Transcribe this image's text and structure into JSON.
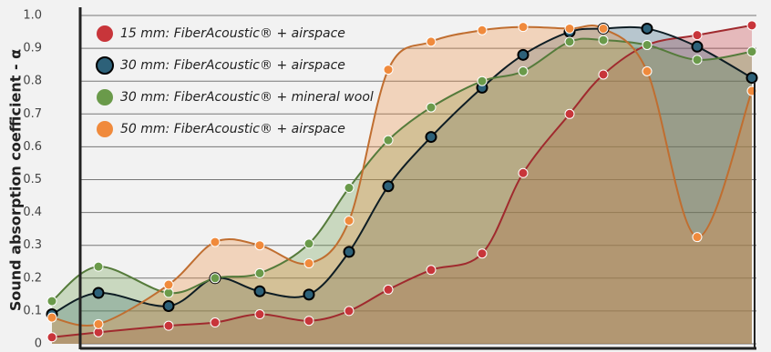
{
  "chart_data": {
    "type": "area-line",
    "y_label": "Sound absorption coefficient - α",
    "categories": [
      null,
      null,
      null,
      null,
      null,
      null,
      null,
      null,
      null,
      null,
      null,
      null,
      null,
      null,
      null,
      null
    ],
    "ylim": [
      0,
      1
    ],
    "yticks": [
      0,
      0.1,
      0.2,
      0.3,
      0.4,
      0.5,
      0.6,
      0.7,
      0.8,
      0.9,
      {
        "value": 1,
        "label": "1.0"
      }
    ],
    "grid": true,
    "series": [
      {
        "name": "15 mm: FiberAcoustic® + airspace",
        "color": "#c8353a",
        "values": [
          0.02,
          0.035,
          0.055,
          0.065,
          0.09,
          0.07,
          0.1,
          0.165,
          0.225,
          0.275,
          0.52,
          0.7,
          0.82,
          0.91,
          0.94,
          0.97
        ]
      },
      {
        "name": "30 mm: FiberAcoustic® + airspace",
        "color": "#2d6179",
        "values": [
          0.09,
          0.155,
          0.115,
          0.2,
          0.16,
          0.15,
          0.28,
          0.48,
          0.63,
          0.78,
          0.88,
          0.95,
          0.96,
          0.96,
          0.905,
          0.81
        ]
      },
      {
        "name": "30 mm: FiberAcoustic® + mineral wool",
        "color": "#6a9a4a",
        "values": [
          0.13,
          0.235,
          0.155,
          0.2,
          0.215,
          0.305,
          0.475,
          0.62,
          0.72,
          0.8,
          0.83,
          0.92,
          0.925,
          0.91,
          0.865,
          0.89
        ]
      },
      {
        "name": "50 mm: FiberAcoustic® + airspace",
        "color": "#f08a3c",
        "values": [
          0.08,
          0.06,
          0.18,
          0.31,
          0.3,
          0.245,
          0.375,
          0.835,
          0.92,
          0.955,
          0.965,
          0.96,
          0.96,
          0.83,
          0.325,
          0.77
        ]
      }
    ]
  }
}
